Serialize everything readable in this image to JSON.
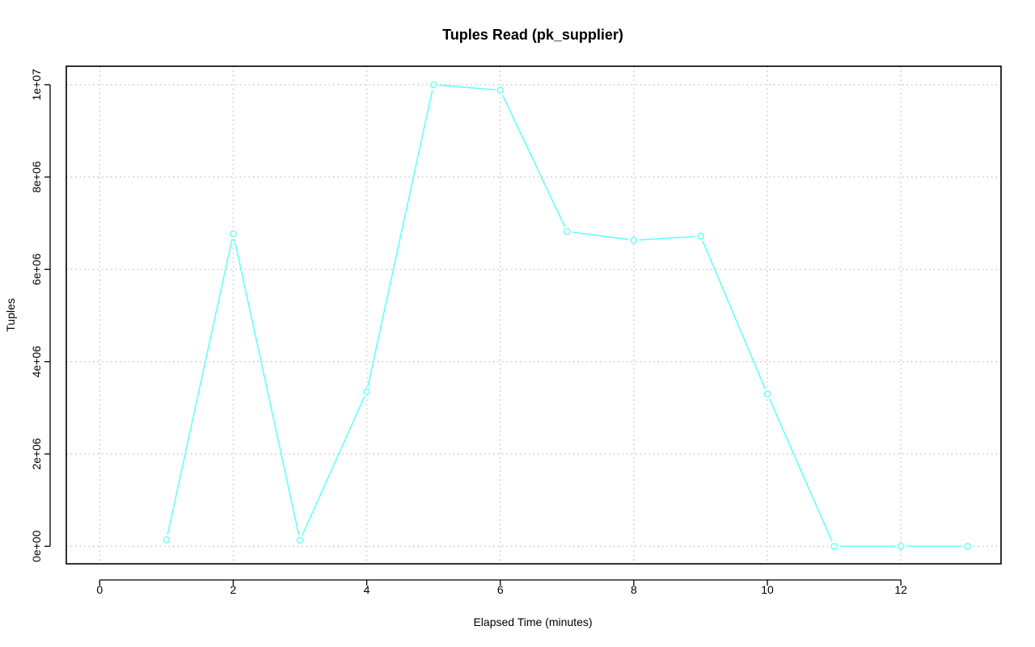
{
  "chart_data": {
    "type": "line",
    "title": "Tuples Read (pk_supplier)",
    "xlabel": "Elapsed Time (minutes)",
    "ylabel": "Tuples",
    "xlim": [
      -0.5,
      13.5
    ],
    "ylim": [
      -380000,
      10400000
    ],
    "x_ticks": [
      0,
      2,
      4,
      6,
      8,
      10,
      12
    ],
    "x_tick_labels": [
      "0",
      "2",
      "4",
      "6",
      "8",
      "10",
      "12"
    ],
    "y_ticks": [
      0,
      2000000,
      4000000,
      6000000,
      8000000,
      10000000
    ],
    "y_tick_labels": [
      "0e+00",
      "2e+06",
      "4e+06",
      "6e+06",
      "8e+06",
      "1e+07"
    ],
    "grid": true,
    "series": [
      {
        "color": "#66ffff",
        "marker": "circle",
        "x": [
          1,
          2,
          3,
          4,
          5,
          6,
          7,
          8,
          9,
          10,
          11,
          12,
          13
        ],
        "y": [
          140000,
          6770000,
          130000,
          3350000,
          10000000,
          9880000,
          6820000,
          6630000,
          6720000,
          3300000,
          0,
          0,
          0
        ]
      }
    ]
  }
}
